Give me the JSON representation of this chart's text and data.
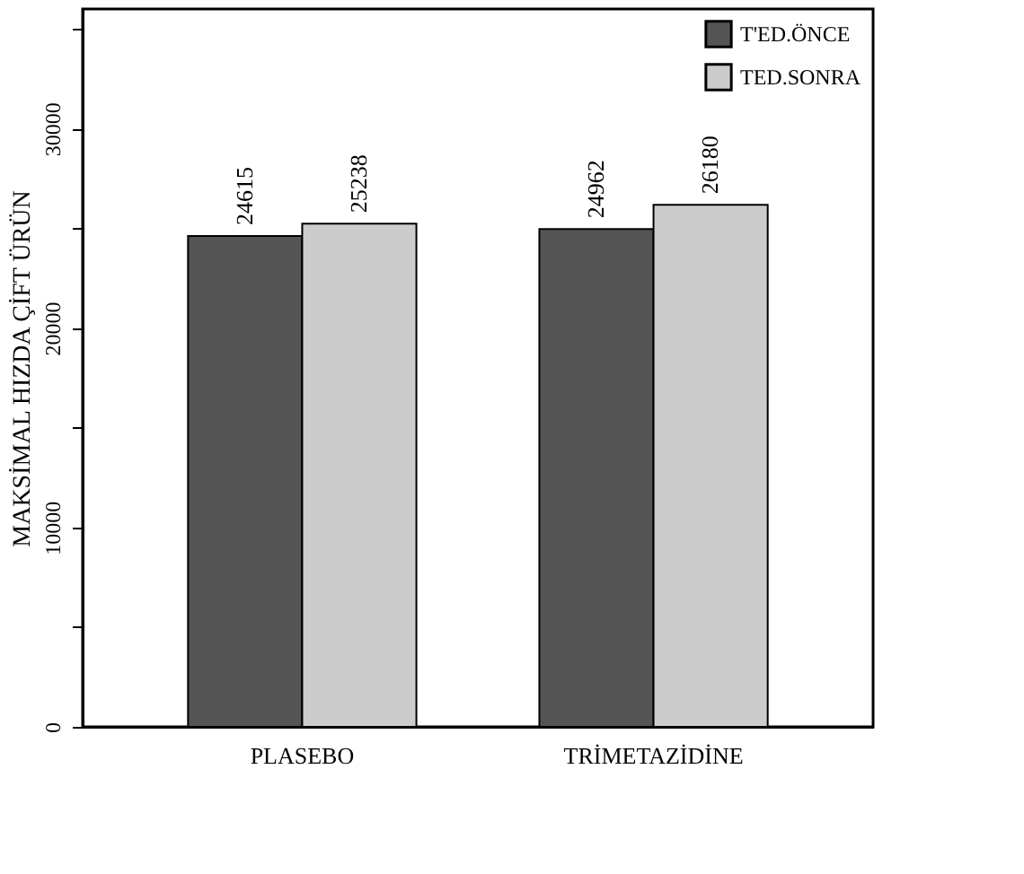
{
  "chart_data": {
    "type": "bar",
    "ylabel": "MAKSİMAL HIZDA ÇİFT ÜRÜN",
    "categories": [
      "PLASEBO",
      "TRİMETAZİDİNE"
    ],
    "series": [
      {
        "name": "T'ED.ÖNCE",
        "color": "#555555",
        "values": [
          24615,
          24962
        ]
      },
      {
        "name": "TED.SONRA",
        "color": "#cccccc",
        "values": [
          25238,
          26180
        ]
      }
    ],
    "ylim": [
      0,
      36000
    ],
    "yticks": [
      0,
      {
        "value": 5000,
        "label": null
      },
      10000,
      {
        "value": 15000,
        "label": null
      },
      20000,
      {
        "value": 25000,
        "label": null
      },
      30000,
      {
        "value": 35000,
        "label": null
      }
    ],
    "data_labels": true,
    "legend": "top right",
    "grid": false
  }
}
